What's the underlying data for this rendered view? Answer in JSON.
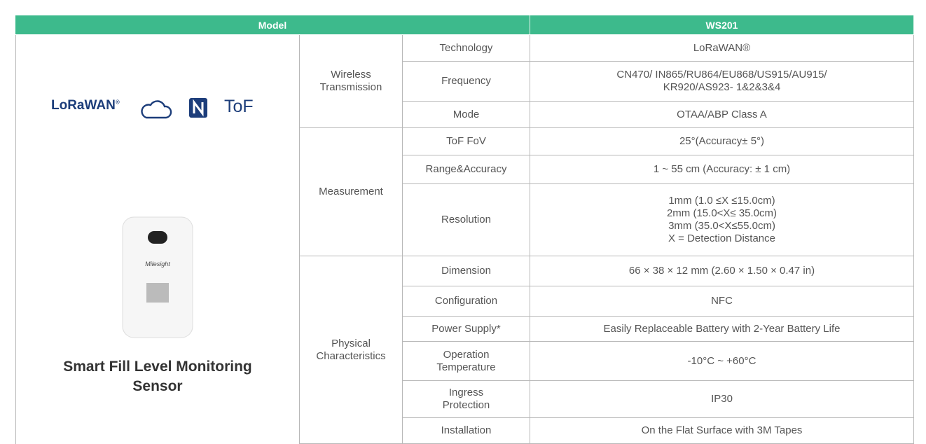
{
  "header": {
    "model": "Model",
    "product": "WS201"
  },
  "left": {
    "logos": [
      "LoRaWAN",
      "ToF"
    ],
    "device_brand": "Milesight",
    "product_name": [
      "Smart Fill Level Monitoring",
      "Sensor"
    ]
  },
  "groups": [
    {
      "label": [
        "Wireless",
        "Transmission"
      ],
      "rows": [
        {
          "parameter": [
            "Technology"
          ],
          "value": [
            "LoRaWAN®"
          ]
        },
        {
          "parameter": [
            "Frequency"
          ],
          "value": [
            "CN470/ IN865/RU864/EU868/US915/AU915/",
            "KR920/AS923- 1&2&3&4"
          ]
        },
        {
          "parameter": [
            "Mode"
          ],
          "value": [
            "OTAA/ABP Class A"
          ]
        }
      ]
    },
    {
      "label": [
        "Measurement"
      ],
      "rows": [
        {
          "parameter": [
            "ToF FoV"
          ],
          "value": [
            "25°(Accuracy± 5°)"
          ]
        },
        {
          "parameter": [
            "Range&Accuracy"
          ],
          "value": [
            "1 ~ 55 cm (Accuracy: ± 1 cm)"
          ]
        },
        {
          "parameter": [
            "Resolution"
          ],
          "value": [
            "1mm (1.0 ≤X ≤15.0cm)",
            "2mm (15.0<X≤ 35.0cm)",
            "3mm (35.0<X≤55.0cm)",
            "X = Detection Distance"
          ]
        }
      ]
    },
    {
      "label": [
        "Physical",
        "Characteristics"
      ],
      "rows": [
        {
          "parameter": [
            "Dimension"
          ],
          "value": [
            "66 × 38 × 12 mm (2.60 × 1.50 × 0.47 in)"
          ]
        },
        {
          "parameter": [
            "Configuration"
          ],
          "value": [
            "NFC"
          ]
        },
        {
          "parameter": [
            "Power Supply*"
          ],
          "value": [
            "Easily Replaceable Battery with 2-Year Battery Life"
          ]
        },
        {
          "parameter": [
            "Operation",
            "Temperature"
          ],
          "value": [
            "-10°C ~ +60°C"
          ]
        },
        {
          "parameter": [
            "Ingress",
            "Protection"
          ],
          "value": [
            "IP30"
          ]
        },
        {
          "parameter": [
            "Installation"
          ],
          "value": [
            "On the Flat Surface with 3M Tapes"
          ]
        }
      ]
    }
  ]
}
